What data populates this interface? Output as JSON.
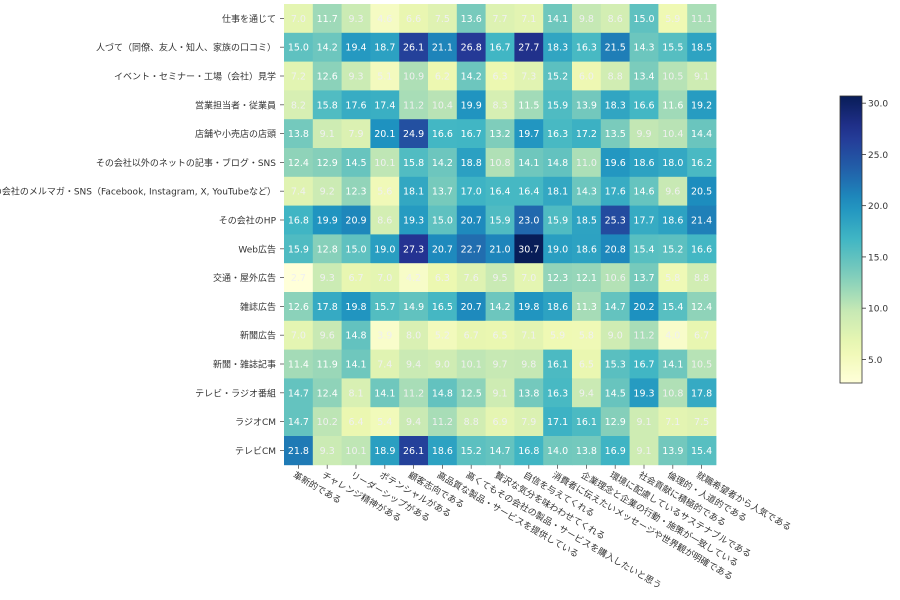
{
  "chart_data": {
    "type": "heatmap",
    "title": "",
    "xlabel": "",
    "ylabel": "",
    "rows": [
      "仕事を通じて",
      "人づて（同僚、友人・知人、家族の口コミ）",
      "イベント・セミナー・工場（会社）見学",
      "営業担当者・従業員",
      "店舗や小売店の店頭",
      "その会社以外のネットの記事・ブログ・SNS",
      "その会社のメルマガ・SNS（Facebook, Instagram, X, YouTubeなど）",
      "その会社のHP",
      "Web広告",
      "交通・屋外広告",
      "雑誌広告",
      "新聞広告",
      "新聞・雑誌記事",
      "テレビ・ラジオ番組",
      "ラジオCM",
      "テレビCM"
    ],
    "columns": [
      "革新的である",
      "チャレンジ精神がある",
      "リーダーシップがある",
      "ポテンシャルがある",
      "顧客志向である",
      "高品質な製品・サービスを提供している",
      "高くてもその会社の製品・サービスを購入したいと思う",
      "贅沢な気分を味わわせてくれる",
      "自信を与えてくれる",
      "消費者に伝えたいメッセージや世界観が明確である",
      "企業理念と企業の行動・施策が一致している",
      "環境に配慮しているサステナブルである",
      "社会貢献に積極的である",
      "倫理的・人道的である",
      "就職希望者から人気である"
    ],
    "values": [
      [
        7.0,
        11.7,
        9.3,
        4.6,
        6.6,
        7.5,
        13.6,
        7.7,
        7.1,
        14.1,
        9.8,
        8.6,
        15.0,
        5.9,
        11.1
      ],
      [
        15.0,
        14.2,
        19.4,
        18.7,
        26.1,
        21.1,
        26.8,
        16.7,
        27.7,
        18.3,
        16.3,
        21.5,
        14.3,
        15.5,
        18.5
      ],
      [
        7.2,
        12.6,
        9.3,
        5.1,
        10.9,
        6.2,
        14.2,
        6.3,
        7.3,
        15.2,
        6.0,
        8.8,
        13.4,
        10.5,
        9.1
      ],
      [
        8.2,
        15.8,
        17.6,
        17.4,
        11.2,
        10.4,
        19.9,
        8.3,
        11.5,
        15.9,
        13.9,
        18.3,
        16.6,
        11.6,
        19.2
      ],
      [
        13.8,
        9.1,
        7.9,
        20.1,
        24.9,
        16.6,
        16.7,
        13.2,
        19.7,
        16.3,
        17.2,
        13.5,
        9.9,
        10.4,
        14.4
      ],
      [
        12.4,
        12.9,
        14.5,
        10.1,
        15.8,
        14.2,
        18.8,
        10.8,
        14.1,
        14.8,
        11.0,
        19.6,
        18.6,
        18.0,
        16.2
      ],
      [
        7.4,
        9.2,
        12.3,
        5.6,
        18.1,
        13.7,
        17.0,
        16.4,
        16.4,
        18.1,
        14.3,
        17.6,
        14.6,
        9.6,
        20.5
      ],
      [
        16.8,
        19.9,
        20.9,
        8.6,
        19.3,
        15.0,
        20.7,
        15.9,
        23.0,
        15.9,
        18.5,
        25.3,
        17.7,
        18.6,
        21.4
      ],
      [
        15.9,
        12.8,
        15.0,
        19.0,
        27.3,
        20.7,
        22.7,
        21.0,
        30.7,
        19.0,
        18.6,
        20.8,
        15.4,
        15.2,
        16.6
      ],
      [
        2.7,
        9.3,
        6.7,
        7.0,
        4.2,
        6.3,
        7.6,
        9.5,
        7.0,
        12.3,
        12.1,
        10.6,
        13.7,
        5.8,
        8.8
      ],
      [
        12.6,
        17.8,
        19.8,
        15.7,
        14.9,
        16.5,
        20.7,
        14.2,
        19.8,
        18.6,
        11.3,
        14.7,
        20.2,
        15.4,
        12.4
      ],
      [
        7.0,
        9.6,
        14.8,
        3.9,
        8.0,
        5.2,
        6.7,
        6.5,
        7.1,
        5.9,
        5.8,
        9.0,
        11.2,
        4.0,
        6.7
      ],
      [
        11.4,
        11.9,
        14.1,
        7.4,
        9.4,
        9.0,
        10.1,
        9.7,
        9.8,
        16.1,
        6.5,
        15.3,
        16.7,
        14.1,
        10.5
      ],
      [
        14.7,
        12.4,
        8.1,
        14.1,
        11.2,
        14.8,
        12.5,
        9.1,
        13.8,
        16.3,
        9.4,
        14.5,
        19.3,
        10.8,
        17.8
      ],
      [
        14.7,
        10.2,
        6.4,
        5.4,
        9.4,
        11.2,
        8.8,
        6.9,
        7.9,
        17.1,
        16.1,
        12.9,
        9.1,
        7.1,
        7.5
      ],
      [
        21.8,
        9.3,
        10.1,
        18.9,
        26.1,
        18.6,
        15.2,
        14.7,
        16.8,
        14.0,
        13.8,
        16.9,
        9.1,
        13.9,
        15.4
      ]
    ],
    "colorbar": {
      "min": 2.7,
      "max": 30.7,
      "ticks": [
        5.0,
        10.0,
        15.0,
        20.0,
        25.0,
        30.0
      ],
      "tick_labels": [
        "5.0",
        "10.0",
        "15.0",
        "20.0",
        "25.0",
        "30.0"
      ],
      "colormap": "YlGnBu"
    },
    "grid": false,
    "legend": "colorbar-right"
  }
}
